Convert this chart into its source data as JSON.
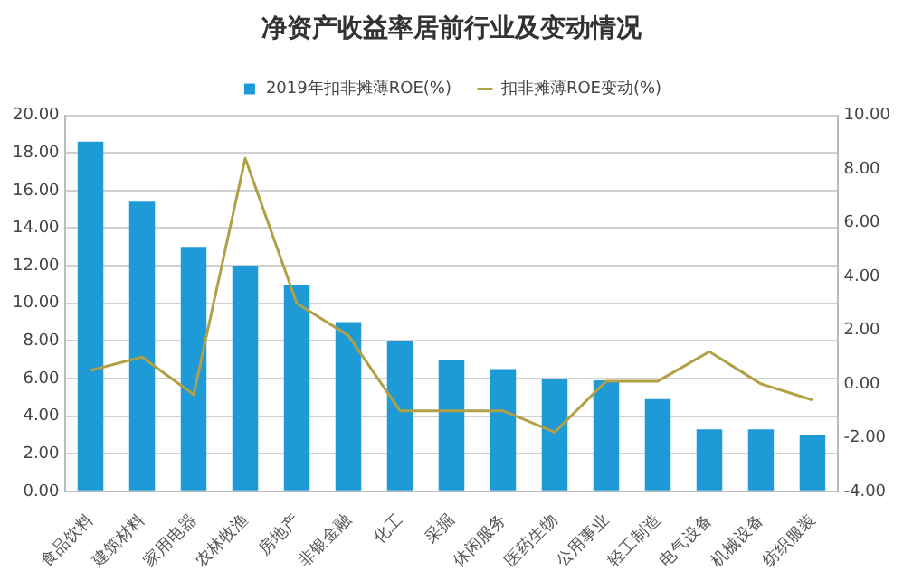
{
  "chart_data": {
    "type": "bar",
    "title": "净资产收益率居前行业及变动情况",
    "categories": [
      "食品饮料",
      "建筑材料",
      "家用电器",
      "农林牧渔",
      "房地产",
      "非银金融",
      "化工",
      "采掘",
      "休闲服务",
      "医药生物",
      "公用事业",
      "轻工制造",
      "电气设备",
      "机械设备",
      "纺织服装"
    ],
    "series": [
      {
        "name": "2019年扣非摊薄ROE(%)",
        "color": "#1e9bd7",
        "values": [
          18.6,
          15.4,
          13.0,
          12.0,
          11.0,
          9.0,
          8.0,
          7.0,
          6.5,
          6.0,
          5.9,
          4.9,
          3.3,
          3.3,
          3.0
        ]
      },
      {
        "name": "扣非摊薄ROE变动(%)",
        "type": "line",
        "axis": "y2",
        "color": "#b0a046",
        "values": [
          0.5,
          1.0,
          -0.4,
          8.4,
          3.0,
          1.8,
          -1.0,
          -1.0,
          -1.0,
          -1.8,
          0.1,
          0.1,
          1.2,
          0.0,
          -0.6
        ]
      }
    ],
    "ylim": [
      0,
      20
    ],
    "yticks": [
      {
        "value": 0,
        "label": "0.00"
      },
      {
        "value": 2,
        "label": "2.00"
      },
      {
        "value": 4,
        "label": "4.00"
      },
      {
        "value": 6,
        "label": "6.00"
      },
      {
        "value": 8,
        "label": "8.00"
      },
      {
        "value": 10,
        "label": "10.00"
      },
      {
        "value": 12,
        "label": "12.00"
      },
      {
        "value": 14,
        "label": "14.00"
      },
      {
        "value": 16,
        "label": "16.00"
      },
      {
        "value": 18,
        "label": "18.00"
      },
      {
        "value": 20,
        "label": "20.00"
      }
    ],
    "y2lim": [
      -4,
      10
    ],
    "y2ticks": [
      {
        "value": -4,
        "label": "-4.00"
      },
      {
        "value": -2,
        "label": "-2.00"
      },
      {
        "value": 0,
        "label": "0.00"
      },
      {
        "value": 2,
        "label": "2.00"
      },
      {
        "value": 4,
        "label": "4.00"
      },
      {
        "value": 6,
        "label": "6.00"
      },
      {
        "value": 8,
        "label": "8.00"
      },
      {
        "value": 10,
        "label": "10.00"
      }
    ],
    "grid": "y",
    "legend": "top",
    "marker": "none",
    "line_style": "solid"
  }
}
